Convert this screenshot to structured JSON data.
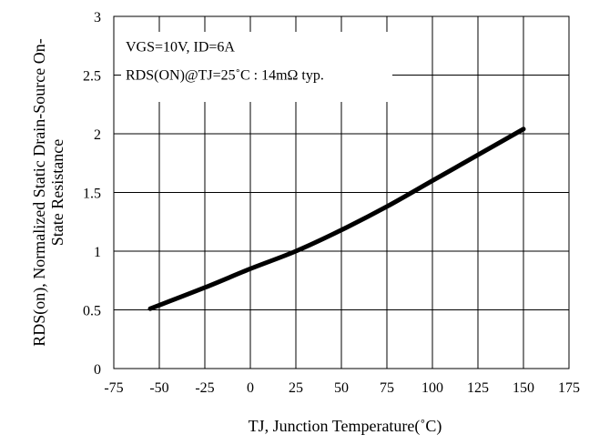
{
  "chart_data": {
    "type": "line",
    "title": "",
    "xlabel": "TJ, Junction Temperature(˚C)",
    "ylabel": "RDS(on), Normalized Static Drain-Source On-State Resistance",
    "ylabel_lines": [
      "RDS(on), Normalized Static Drain-Source On-",
      "State Resistance"
    ],
    "xlim": [
      -75,
      175
    ],
    "ylim": [
      0,
      3
    ],
    "x_ticks": [
      -75,
      -50,
      -25,
      0,
      25,
      50,
      75,
      100,
      125,
      150,
      175
    ],
    "y_ticks": [
      0,
      0.5,
      1,
      1.5,
      2,
      2.5,
      3
    ],
    "x_tick_labels": [
      "-75",
      "-50",
      "-25",
      "0",
      "25",
      "50",
      "75",
      "100",
      "125",
      "150",
      "175"
    ],
    "y_tick_labels": [
      "0",
      "0.5",
      "1",
      "1.5",
      "2",
      "2.5",
      "3"
    ],
    "grid": true,
    "annotations": [
      "VGS=10V, ID=6A",
      "RDS(ON)@TJ=25˚C : 14mΩ  typ."
    ],
    "series": [
      {
        "x": [
          -55,
          -25,
          0,
          25,
          50,
          75,
          100,
          125,
          150
        ],
        "y": [
          0.51,
          0.69,
          0.85,
          1.0,
          1.18,
          1.38,
          1.6,
          1.82,
          2.04
        ]
      }
    ]
  }
}
